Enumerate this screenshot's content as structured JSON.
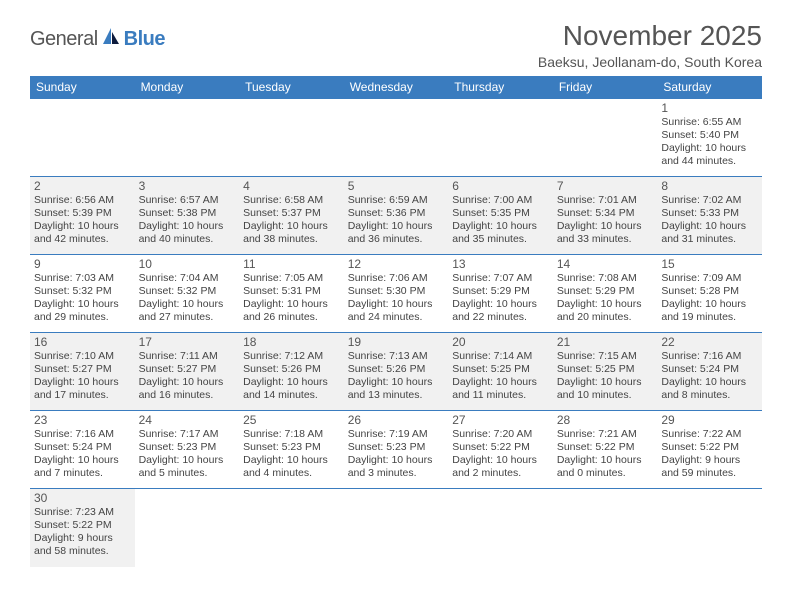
{
  "logo": {
    "text1": "General",
    "text2": "Blue"
  },
  "title": "November 2025",
  "location": "Baeksu, Jeollanam-do, South Korea",
  "colors": {
    "header_bg": "#3a7cbf",
    "header_text": "#ffffff",
    "shaded_bg": "#f1f1f1",
    "border": "#3a7cbf",
    "text": "#444444"
  },
  "weekdays": [
    "Sunday",
    "Monday",
    "Tuesday",
    "Wednesday",
    "Thursday",
    "Friday",
    "Saturday"
  ],
  "weeks": [
    [
      null,
      null,
      null,
      null,
      null,
      null,
      {
        "n": "1",
        "sr": "Sunrise: 6:55 AM",
        "ss": "Sunset: 5:40 PM",
        "d1": "Daylight: 10 hours",
        "d2": "and 44 minutes."
      }
    ],
    [
      {
        "n": "2",
        "sr": "Sunrise: 6:56 AM",
        "ss": "Sunset: 5:39 PM",
        "d1": "Daylight: 10 hours",
        "d2": "and 42 minutes.",
        "shaded": true
      },
      {
        "n": "3",
        "sr": "Sunrise: 6:57 AM",
        "ss": "Sunset: 5:38 PM",
        "d1": "Daylight: 10 hours",
        "d2": "and 40 minutes.",
        "shaded": true
      },
      {
        "n": "4",
        "sr": "Sunrise: 6:58 AM",
        "ss": "Sunset: 5:37 PM",
        "d1": "Daylight: 10 hours",
        "d2": "and 38 minutes.",
        "shaded": true
      },
      {
        "n": "5",
        "sr": "Sunrise: 6:59 AM",
        "ss": "Sunset: 5:36 PM",
        "d1": "Daylight: 10 hours",
        "d2": "and 36 minutes.",
        "shaded": true
      },
      {
        "n": "6",
        "sr": "Sunrise: 7:00 AM",
        "ss": "Sunset: 5:35 PM",
        "d1": "Daylight: 10 hours",
        "d2": "and 35 minutes.",
        "shaded": true
      },
      {
        "n": "7",
        "sr": "Sunrise: 7:01 AM",
        "ss": "Sunset: 5:34 PM",
        "d1": "Daylight: 10 hours",
        "d2": "and 33 minutes.",
        "shaded": true
      },
      {
        "n": "8",
        "sr": "Sunrise: 7:02 AM",
        "ss": "Sunset: 5:33 PM",
        "d1": "Daylight: 10 hours",
        "d2": "and 31 minutes.",
        "shaded": true
      }
    ],
    [
      {
        "n": "9",
        "sr": "Sunrise: 7:03 AM",
        "ss": "Sunset: 5:32 PM",
        "d1": "Daylight: 10 hours",
        "d2": "and 29 minutes."
      },
      {
        "n": "10",
        "sr": "Sunrise: 7:04 AM",
        "ss": "Sunset: 5:32 PM",
        "d1": "Daylight: 10 hours",
        "d2": "and 27 minutes."
      },
      {
        "n": "11",
        "sr": "Sunrise: 7:05 AM",
        "ss": "Sunset: 5:31 PM",
        "d1": "Daylight: 10 hours",
        "d2": "and 26 minutes."
      },
      {
        "n": "12",
        "sr": "Sunrise: 7:06 AM",
        "ss": "Sunset: 5:30 PM",
        "d1": "Daylight: 10 hours",
        "d2": "and 24 minutes."
      },
      {
        "n": "13",
        "sr": "Sunrise: 7:07 AM",
        "ss": "Sunset: 5:29 PM",
        "d1": "Daylight: 10 hours",
        "d2": "and 22 minutes."
      },
      {
        "n": "14",
        "sr": "Sunrise: 7:08 AM",
        "ss": "Sunset: 5:29 PM",
        "d1": "Daylight: 10 hours",
        "d2": "and 20 minutes."
      },
      {
        "n": "15",
        "sr": "Sunrise: 7:09 AM",
        "ss": "Sunset: 5:28 PM",
        "d1": "Daylight: 10 hours",
        "d2": "and 19 minutes."
      }
    ],
    [
      {
        "n": "16",
        "sr": "Sunrise: 7:10 AM",
        "ss": "Sunset: 5:27 PM",
        "d1": "Daylight: 10 hours",
        "d2": "and 17 minutes.",
        "shaded": true
      },
      {
        "n": "17",
        "sr": "Sunrise: 7:11 AM",
        "ss": "Sunset: 5:27 PM",
        "d1": "Daylight: 10 hours",
        "d2": "and 16 minutes.",
        "shaded": true
      },
      {
        "n": "18",
        "sr": "Sunrise: 7:12 AM",
        "ss": "Sunset: 5:26 PM",
        "d1": "Daylight: 10 hours",
        "d2": "and 14 minutes.",
        "shaded": true
      },
      {
        "n": "19",
        "sr": "Sunrise: 7:13 AM",
        "ss": "Sunset: 5:26 PM",
        "d1": "Daylight: 10 hours",
        "d2": "and 13 minutes.",
        "shaded": true
      },
      {
        "n": "20",
        "sr": "Sunrise: 7:14 AM",
        "ss": "Sunset: 5:25 PM",
        "d1": "Daylight: 10 hours",
        "d2": "and 11 minutes.",
        "shaded": true
      },
      {
        "n": "21",
        "sr": "Sunrise: 7:15 AM",
        "ss": "Sunset: 5:25 PM",
        "d1": "Daylight: 10 hours",
        "d2": "and 10 minutes.",
        "shaded": true
      },
      {
        "n": "22",
        "sr": "Sunrise: 7:16 AM",
        "ss": "Sunset: 5:24 PM",
        "d1": "Daylight: 10 hours",
        "d2": "and 8 minutes.",
        "shaded": true
      }
    ],
    [
      {
        "n": "23",
        "sr": "Sunrise: 7:16 AM",
        "ss": "Sunset: 5:24 PM",
        "d1": "Daylight: 10 hours",
        "d2": "and 7 minutes."
      },
      {
        "n": "24",
        "sr": "Sunrise: 7:17 AM",
        "ss": "Sunset: 5:23 PM",
        "d1": "Daylight: 10 hours",
        "d2": "and 5 minutes."
      },
      {
        "n": "25",
        "sr": "Sunrise: 7:18 AM",
        "ss": "Sunset: 5:23 PM",
        "d1": "Daylight: 10 hours",
        "d2": "and 4 minutes."
      },
      {
        "n": "26",
        "sr": "Sunrise: 7:19 AM",
        "ss": "Sunset: 5:23 PM",
        "d1": "Daylight: 10 hours",
        "d2": "and 3 minutes."
      },
      {
        "n": "27",
        "sr": "Sunrise: 7:20 AM",
        "ss": "Sunset: 5:22 PM",
        "d1": "Daylight: 10 hours",
        "d2": "and 2 minutes."
      },
      {
        "n": "28",
        "sr": "Sunrise: 7:21 AM",
        "ss": "Sunset: 5:22 PM",
        "d1": "Daylight: 10 hours",
        "d2": "and 0 minutes."
      },
      {
        "n": "29",
        "sr": "Sunrise: 7:22 AM",
        "ss": "Sunset: 5:22 PM",
        "d1": "Daylight: 9 hours",
        "d2": "and 59 minutes."
      }
    ],
    [
      {
        "n": "30",
        "sr": "Sunrise: 7:23 AM",
        "ss": "Sunset: 5:22 PM",
        "d1": "Daylight: 9 hours",
        "d2": "and 58 minutes.",
        "shaded": true
      },
      null,
      null,
      null,
      null,
      null,
      null
    ]
  ]
}
